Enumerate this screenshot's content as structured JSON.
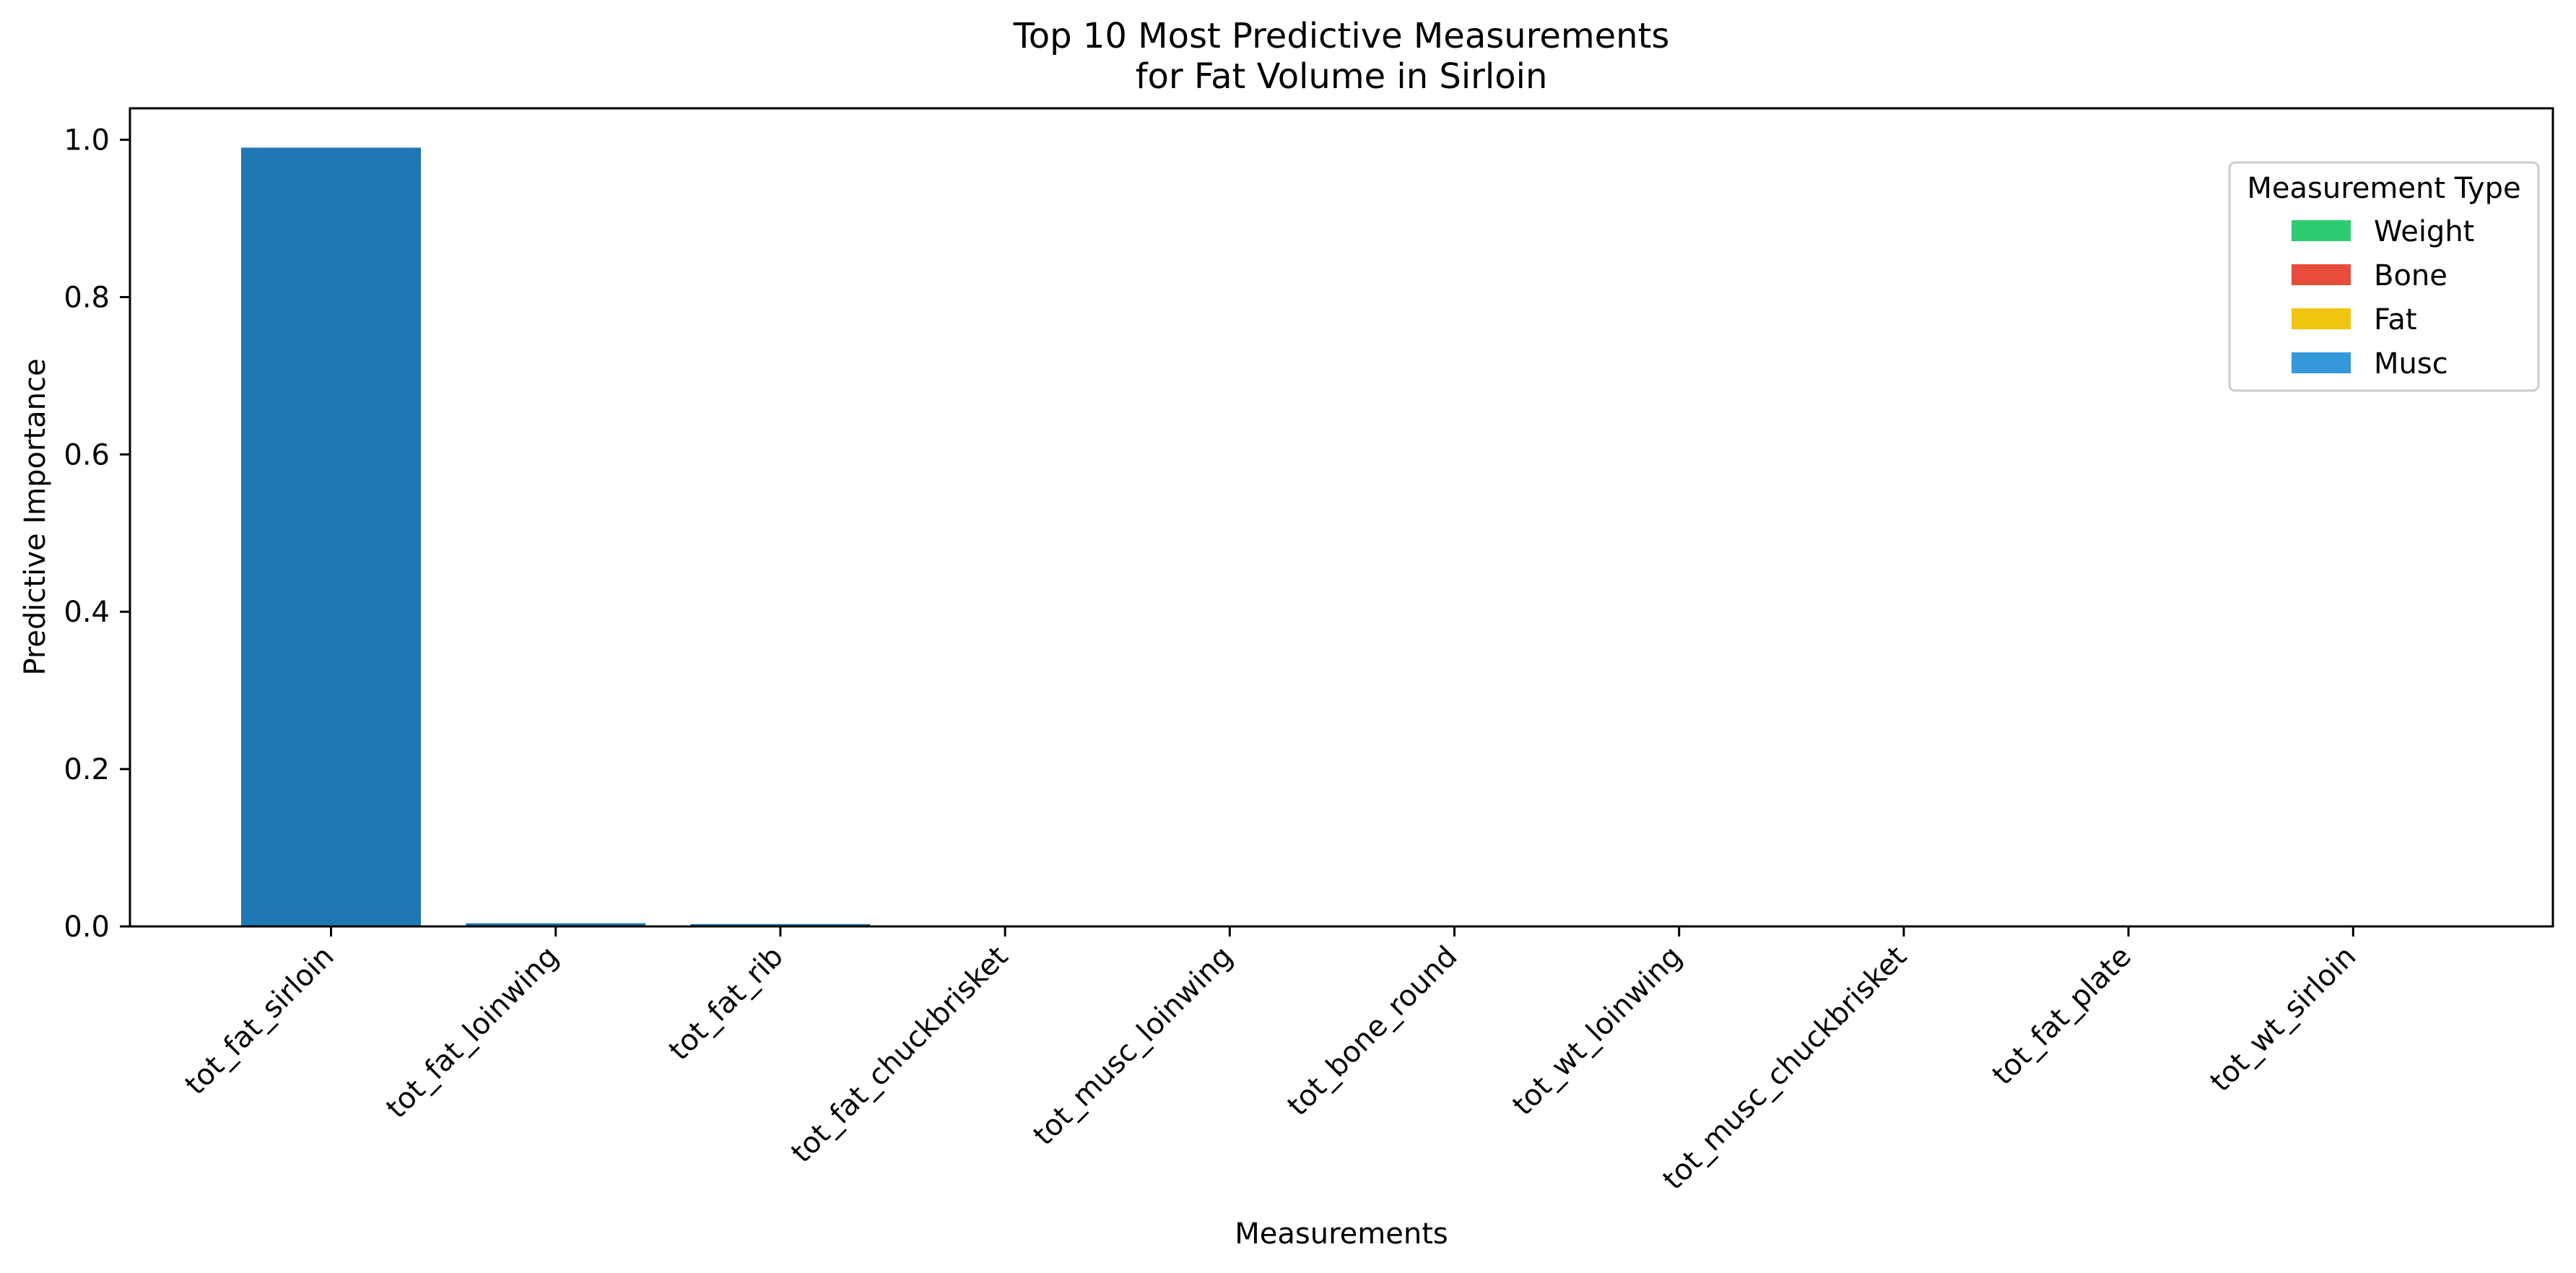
{
  "chart_data": {
    "type": "bar",
    "title_line1": "Top 10 Most Predictive Measurements",
    "title_line2": "for Fat Volume in Sirloin",
    "xlabel": "Measurements",
    "ylabel": "Predictive Importance",
    "ylim": [
      0,
      1.04
    ],
    "yticks": [
      "0.0",
      "0.2",
      "0.4",
      "0.6",
      "0.8",
      "1.0"
    ],
    "grid": false,
    "categories": [
      "tot_fat_sirloin",
      "tot_fat_loinwing",
      "tot_fat_rib",
      "tot_fat_chuckbrisket",
      "tot_musc_loinwing",
      "tot_bone_round",
      "tot_wt_loinwing",
      "tot_musc_chuckbrisket",
      "tot_fat_plate",
      "tot_wt_sirloin"
    ],
    "values": [
      0.99,
      0.004,
      0.003,
      0.0005,
      0.0004,
      0.0003,
      0.0003,
      0.0002,
      0.0002,
      0.0001
    ],
    "bar_color": "#1f77b4",
    "legend": {
      "title": "Measurement Type",
      "placement": "upper right",
      "items": [
        {
          "label": "Weight",
          "color": "#2ecc71"
        },
        {
          "label": "Bone",
          "color": "#e74c3c"
        },
        {
          "label": "Fat",
          "color": "#f1c40f"
        },
        {
          "label": "Musc",
          "color": "#3498db"
        }
      ]
    }
  }
}
